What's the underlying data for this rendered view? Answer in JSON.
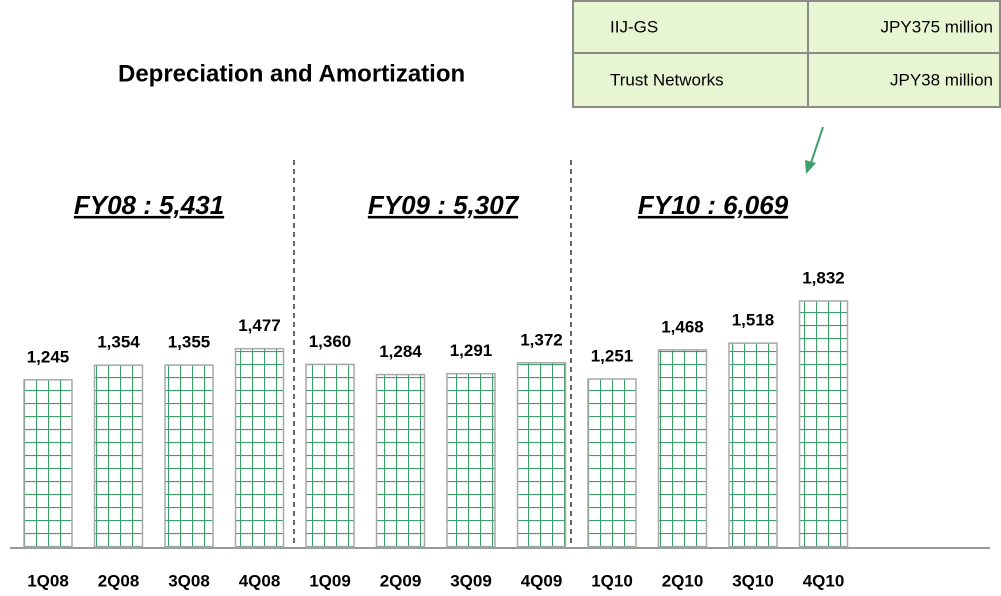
{
  "chart_data": {
    "type": "bar",
    "title": "Depreciation and Amortization",
    "categories": [
      "1Q08",
      "2Q08",
      "3Q08",
      "4Q08",
      "1Q09",
      "2Q09",
      "3Q09",
      "4Q09",
      "1Q10",
      "2Q10",
      "3Q10",
      "4Q10"
    ],
    "values": [
      1245,
      1354,
      1355,
      1477,
      1360,
      1284,
      1291,
      1372,
      1251,
      1468,
      1518,
      1832
    ],
    "value_labels": [
      "1,245",
      "1,354",
      "1,355",
      "1,477",
      "1,360",
      "1,284",
      "1,291",
      "1,372",
      "1,251",
      "1,468",
      "1,518",
      "1,832"
    ],
    "color": "#3c9e6b",
    "annotations": [
      "FY08 : 5,431",
      "FY09 : 5,307",
      "FY10 : 6,069"
    ],
    "table": {
      "rows": [
        [
          "IIJ-GS",
          "JPY375 million"
        ],
        [
          "Trust Networks",
          "JPY38 million"
        ]
      ]
    }
  }
}
